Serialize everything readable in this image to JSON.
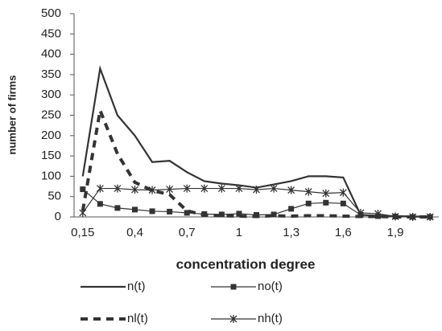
{
  "chart_data": {
    "type": "line",
    "x_label": "concentration degree",
    "y_label": "number of firms",
    "categories": [
      "0,15",
      null,
      null,
      "0,4",
      null,
      null,
      "0,7",
      null,
      null,
      "1",
      null,
      null,
      "1,3",
      null,
      null,
      "1,6",
      null,
      null,
      "1,9",
      null,
      null
    ],
    "series": [
      {
        "name": "n(t)",
        "color": "#333333",
        "dash": "solid",
        "marker": "none",
        "values": [
          100,
          365,
          250,
          200,
          135,
          138,
          110,
          88,
          82,
          78,
          72,
          80,
          88,
          100,
          100,
          97,
          5,
          3,
          2,
          1,
          1
        ]
      },
      {
        "name": "no(t)",
        "color": "#333333",
        "dash": "solid",
        "marker": "square",
        "values": [
          68,
          32,
          22,
          18,
          14,
          13,
          10,
          7,
          6,
          8,
          5,
          6,
          20,
          33,
          35,
          33,
          5,
          2,
          1,
          0,
          0
        ]
      },
      {
        "name": "nl(t)",
        "color": "#333333",
        "dash": "dashed",
        "marker": "none",
        "values": [
          15,
          262,
          155,
          85,
          65,
          55,
          15,
          5,
          3,
          2,
          1,
          3,
          2,
          3,
          3,
          2,
          1,
          1,
          0,
          0,
          0
        ]
      },
      {
        "name": "nh(t)",
        "color": "#333333",
        "dash": "solid",
        "marker": "star",
        "values": [
          10,
          70,
          70,
          67,
          66,
          68,
          70,
          70,
          70,
          70,
          67,
          70,
          66,
          62,
          58,
          60,
          10,
          8,
          1,
          0,
          0
        ]
      }
    ],
    "ylim": [
      0,
      500
    ],
    "yticks": [
      0,
      50,
      100,
      150,
      200,
      250,
      300,
      350,
      400,
      450,
      500
    ],
    "grid": false
  }
}
